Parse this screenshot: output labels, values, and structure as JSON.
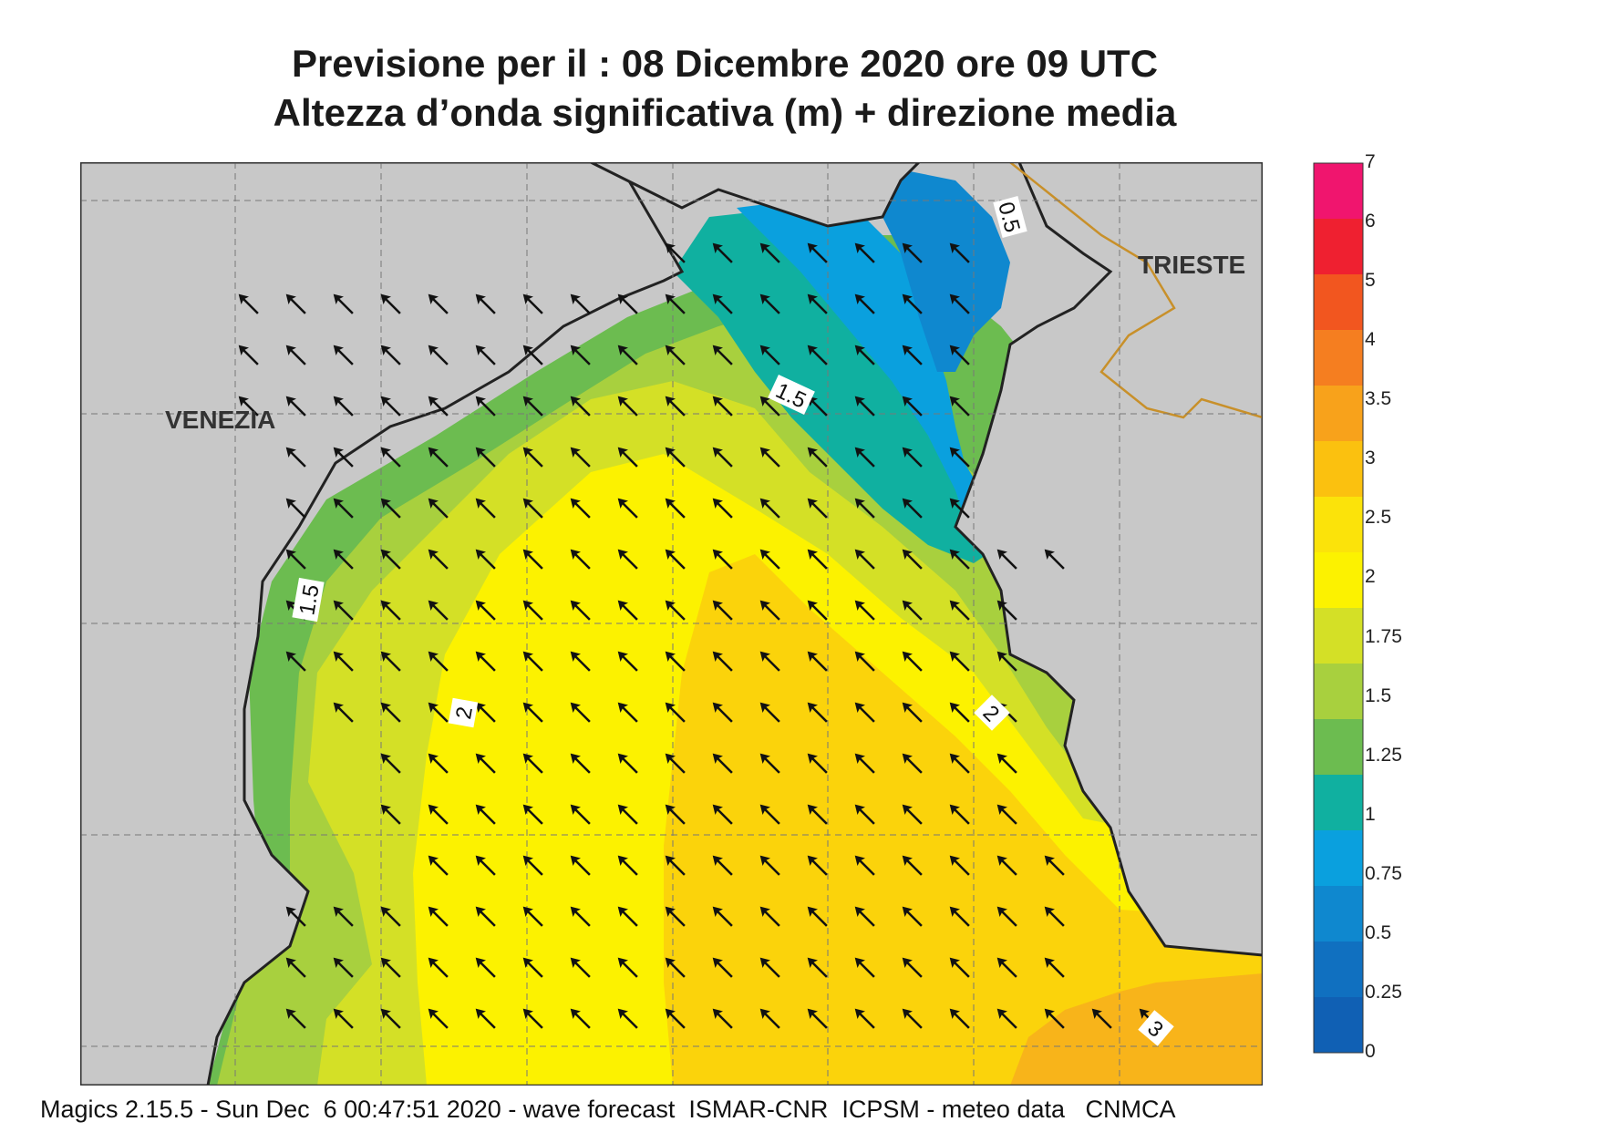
{
  "title_line1": "Previsione per il  :  08 Dicembre  2020   ore 09 UTC",
  "title_line2": "Altezza d’onda significativa (m) + direzione media",
  "cities": {
    "venezia": "VENEZIA",
    "trieste": "TRIESTE"
  },
  "contour_labels": {
    "c1": "0.5",
    "c2": "1.5",
    "c3": "1.5",
    "c4": "2",
    "c5": "2",
    "c6": "3"
  },
  "legend": {
    "labels": [
      "7",
      "6",
      "5",
      "4",
      "3.5",
      "3",
      "2.5",
      "2",
      "1.75",
      "1.5",
      "1.25",
      "1",
      "0.75",
      "0.5",
      "0.25",
      "0"
    ],
    "colors": [
      "#f0156e",
      "#ef2030",
      "#f2561f",
      "#f57e20",
      "#f8a21b",
      "#fbc10f",
      "#fbe30a",
      "#fcf200",
      "#d4e026",
      "#a8d03e",
      "#6cbc50",
      "#10b0a0",
      "#0aa0de",
      "#0f88cf",
      "#1070c0",
      "#1060b4"
    ]
  },
  "land_color": "#c8c8c8",
  "arrow_direction": "north-west",
  "footer": "Magics 2.15.5 - Sun Dec  6 00:47:51 2020 - wave forecast  ISMAR-CNR  ICPSM - meteo data   CNMCA"
}
